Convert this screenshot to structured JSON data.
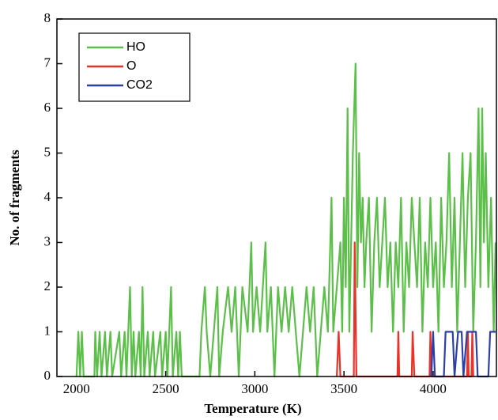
{
  "chart_data": {
    "type": "line",
    "x_label": "Temperature (K)",
    "y_label": "No. of fragments",
    "xlim": [
      1890,
      4355
    ],
    "ylim": [
      0,
      8
    ],
    "xticks": [
      2000,
      2500,
      3000,
      3500,
      4000
    ],
    "yticks": [
      0,
      1,
      2,
      3,
      4,
      5,
      6,
      7,
      8
    ],
    "legend": "upper left",
    "series": [
      {
        "name": "HO",
        "color": "#5cbf4a",
        "x": [
          2000,
          2010,
          2020,
          2030,
          2040,
          2100,
          2105,
          2115,
          2130,
          2140,
          2160,
          2170,
          2190,
          2200,
          2240,
          2250,
          2270,
          2280,
          2300,
          2310,
          2320,
          2330,
          2350,
          2360,
          2370,
          2380,
          2400,
          2410,
          2430,
          2440,
          2470,
          2480,
          2500,
          2510,
          2530,
          2540,
          2560,
          2570,
          2580,
          2590,
          2690,
          2700,
          2720,
          2730,
          2750,
          2770,
          2790,
          2800,
          2820,
          2850,
          2870,
          2890,
          2910,
          2930,
          2960,
          2980,
          2990,
          3010,
          3030,
          3060,
          3070,
          3090,
          3110,
          3130,
          3150,
          3170,
          3190,
          3210,
          3230,
          3250,
          3270,
          3290,
          3310,
          3330,
          3350,
          3370,
          3390,
          3410,
          3430,
          3440,
          3460,
          3480,
          3490,
          3500,
          3510,
          3520,
          3530,
          3540,
          3550,
          3565,
          3575,
          3585,
          3595,
          3605,
          3615,
          3625,
          3640,
          3655,
          3670,
          3685,
          3700,
          3715,
          3730,
          3745,
          3760,
          3775,
          3790,
          3805,
          3820,
          3835,
          3850,
          3865,
          3880,
          3895,
          3910,
          3925,
          3940,
          3955,
          3970,
          3985,
          4000,
          4015,
          4030,
          4045,
          4060,
          4075,
          4090,
          4105,
          4120,
          4135,
          4150,
          4165,
          4180,
          4195,
          4210,
          4225,
          4240,
          4255,
          4265,
          4275,
          4285,
          4295,
          4310,
          4325,
          4340,
          4350
        ],
        "values": [
          0,
          1,
          0,
          1,
          0,
          0,
          1,
          0,
          1,
          0,
          1,
          0,
          1,
          0,
          1,
          0,
          1,
          0,
          2,
          0,
          1,
          0,
          1,
          0,
          2,
          0,
          1,
          0,
          1,
          0,
          1,
          0,
          1,
          0,
          2,
          0,
          1,
          0,
          1,
          0,
          0,
          1,
          2,
          1,
          0,
          1,
          2,
          0,
          1,
          2,
          1,
          2,
          0,
          2,
          1,
          3,
          1,
          2,
          1,
          3,
          1,
          2,
          0,
          2,
          1,
          2,
          1,
          2,
          1,
          0,
          1,
          2,
          1,
          2,
          0,
          1,
          2,
          1,
          4,
          1,
          2,
          3,
          1,
          4,
          2,
          6,
          1,
          3,
          5,
          7,
          2,
          5,
          3,
          4,
          2,
          3,
          4,
          1,
          3,
          4,
          2,
          3,
          4,
          2,
          3,
          1,
          3,
          2,
          4,
          1,
          3,
          2,
          4,
          3,
          2,
          4,
          1,
          3,
          2,
          4,
          2,
          3,
          1,
          4,
          2,
          3,
          5,
          2,
          4,
          1,
          3,
          5,
          2,
          4,
          5,
          1,
          3,
          6,
          2,
          6,
          3,
          5,
          2,
          4,
          1,
          3
        ]
      },
      {
        "name": "O",
        "color": "#e8322a",
        "x": [
          3460,
          3470,
          3480,
          3555,
          3560,
          3570,
          3800,
          3805,
          3810,
          3880,
          3885,
          3895,
          3980,
          3985,
          3990,
          4190,
          4195,
          4200,
          4215,
          4220,
          4225
        ],
        "values": [
          0,
          1,
          0,
          0,
          3,
          0,
          0,
          1,
          0,
          0,
          1,
          0,
          0,
          1,
          0,
          0,
          1,
          0,
          0,
          1,
          0
        ]
      },
      {
        "name": "CO2",
        "color": "#2e3fa8",
        "x": [
          3990,
          4000,
          4010,
          4060,
          4070,
          4110,
          4120,
          4140,
          4160,
          4170,
          4190,
          4240,
          4250,
          4310,
          4320,
          4350
        ],
        "values": [
          0,
          1,
          0,
          0,
          1,
          1,
          0,
          1,
          1,
          0,
          1,
          1,
          0,
          0,
          1,
          1
        ]
      }
    ]
  }
}
